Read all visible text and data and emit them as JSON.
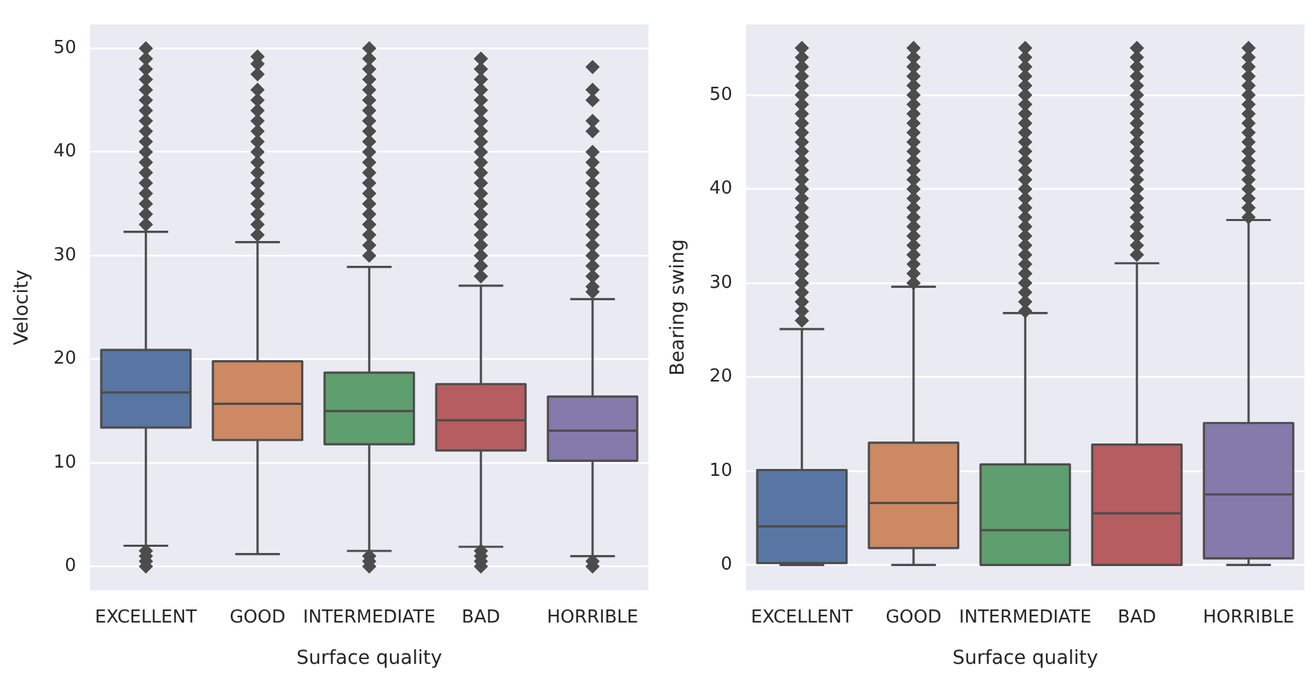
{
  "chart_data": [
    {
      "type": "box",
      "xlabel": "Surface quality",
      "ylabel": "Velocity",
      "categories": [
        "EXCELLENT",
        "GOOD",
        "INTERMEDIATE",
        "BAD",
        "HORRIBLE"
      ],
      "colors": [
        "#5875a4",
        "#cc8963",
        "#5f9e6e",
        "#b55d60",
        "#857aab"
      ],
      "ylim": [
        -2.3,
        52.3
      ],
      "yticks": [
        0,
        10,
        20,
        30,
        40,
        50
      ],
      "grid": "y",
      "marker": "diamond",
      "boxes": [
        {
          "low": 2.0,
          "q1": 13.4,
          "median": 16.8,
          "q3": 20.9,
          "high": 32.3,
          "outliers": [
            0,
            0.5,
            1,
            1.5,
            33,
            34,
            35,
            36,
            37,
            38,
            39,
            40,
            41,
            42,
            43,
            44,
            45,
            46,
            47,
            48,
            49,
            50
          ]
        },
        {
          "low": 1.2,
          "q1": 12.2,
          "median": 15.7,
          "q3": 19.8,
          "high": 31.3,
          "outliers": [
            32,
            33,
            34,
            35,
            36,
            37,
            38,
            39,
            40,
            41,
            42,
            43,
            44,
            45,
            46,
            47.5,
            48.5,
            49.2
          ]
        },
        {
          "low": 1.5,
          "q1": 11.8,
          "median": 15.0,
          "q3": 18.7,
          "high": 28.9,
          "outliers": [
            0,
            0.5,
            1,
            30,
            31,
            32,
            33,
            34,
            35,
            36,
            37,
            38,
            39,
            40,
            41,
            42,
            43,
            44,
            45,
            46,
            47,
            48,
            49,
            50
          ]
        },
        {
          "low": 1.9,
          "q1": 11.2,
          "median": 14.1,
          "q3": 17.6,
          "high": 27.1,
          "outliers": [
            0,
            0.5,
            1,
            1.5,
            28,
            29,
            30,
            31,
            32,
            33,
            34,
            35,
            36,
            37,
            38,
            39,
            40,
            41,
            42,
            43,
            44,
            45,
            46,
            47,
            48,
            49
          ]
        },
        {
          "low": 1.0,
          "q1": 10.2,
          "median": 13.1,
          "q3": 16.4,
          "high": 25.8,
          "outliers": [
            0,
            0.5,
            26.5,
            27,
            28,
            29,
            30,
            31,
            32,
            33,
            34,
            35,
            36,
            37,
            38,
            39,
            40,
            42,
            43,
            45,
            46,
            48.2
          ]
        }
      ]
    },
    {
      "type": "box",
      "xlabel": "Surface quality",
      "ylabel": "Bearing swing",
      "categories": [
        "EXCELLENT",
        "GOOD",
        "INTERMEDIATE",
        "BAD",
        "HORRIBLE"
      ],
      "colors": [
        "#5875a4",
        "#cc8963",
        "#5f9e6e",
        "#b55d60",
        "#857aab"
      ],
      "ylim": [
        -2.7,
        57.5
      ],
      "yticks": [
        0,
        10,
        20,
        30,
        40,
        50
      ],
      "grid": "y",
      "marker": "diamond",
      "boxes": [
        {
          "low": 0,
          "q1": 0.2,
          "median": 4.1,
          "q3": 10.1,
          "high": 25.1,
          "outliers": [
            26,
            27,
            28,
            29,
            30,
            31,
            32,
            33,
            34,
            35,
            36,
            37,
            38,
            39,
            40,
            41,
            42,
            43,
            44,
            45,
            46,
            47,
            48,
            49,
            50,
            51,
            52,
            53,
            54,
            55
          ]
        },
        {
          "low": 0,
          "q1": 1.8,
          "median": 6.6,
          "q3": 13.0,
          "high": 29.6,
          "outliers": [
            30,
            31,
            32,
            33,
            34,
            35,
            36,
            37,
            38,
            39,
            40,
            41,
            42,
            43,
            44,
            45,
            46,
            47,
            48,
            49,
            50,
            51,
            52,
            53,
            54,
            55
          ]
        },
        {
          "low": 0,
          "q1": 0,
          "median": 3.7,
          "q3": 10.7,
          "high": 26.8,
          "outliers": [
            27,
            28,
            29,
            30,
            31,
            32,
            33,
            34,
            35,
            36,
            37,
            38,
            39,
            40,
            41,
            42,
            43,
            44,
            45,
            46,
            47,
            48,
            49,
            50,
            51,
            52,
            53,
            54,
            55
          ]
        },
        {
          "low": 0,
          "q1": 0,
          "median": 5.5,
          "q3": 12.8,
          "high": 32.1,
          "outliers": [
            33,
            34,
            35,
            36,
            37,
            38,
            39,
            40,
            41,
            42,
            43,
            44,
            45,
            46,
            47,
            48,
            49,
            50,
            51,
            52,
            53,
            54,
            55
          ]
        },
        {
          "low": 0,
          "q1": 0.7,
          "median": 7.5,
          "q3": 15.1,
          "high": 36.7,
          "outliers": [
            37,
            38,
            39,
            40,
            41,
            42,
            43,
            44,
            45,
            46,
            47,
            48,
            49,
            50,
            51,
            52,
            53,
            54,
            55
          ]
        }
      ]
    }
  ]
}
